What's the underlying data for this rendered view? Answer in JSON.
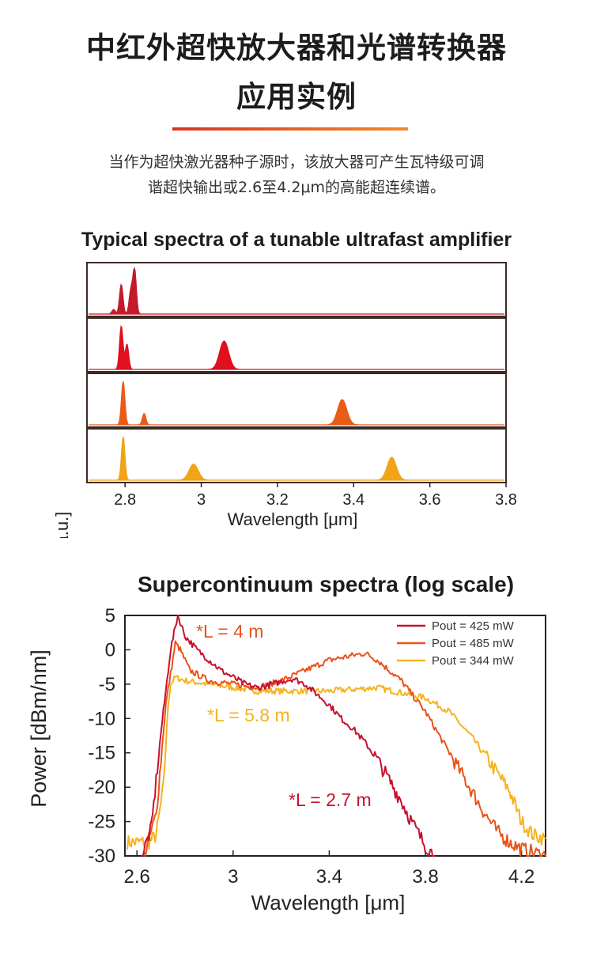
{
  "header": {
    "title_line1": "中红外超快放大器和光谱转换器",
    "title_line2": "应用实例",
    "intro_line1": "当作为超快激光器种子源时，该放大器可产生瓦特级可调",
    "intro_line2": "谐超快输出或2.6至4.2μm的高能超连续谱。"
  },
  "colors": {
    "divider": "#e0502a",
    "red": "#c8102e",
    "orange": "#e8531b",
    "amber": "#f0a316"
  },
  "chart_data": [
    {
      "type": "area",
      "title": "Typical spectra of a tunable ultrafast amplifier",
      "xlabel": "Wavelength [μm]",
      "ylabel": "Relative power [a.u.]",
      "xlim": [
        2.7,
        3.8
      ],
      "xticks": [
        "2.8",
        "3",
        "3.2",
        "3.4",
        "3.6",
        "3.8"
      ],
      "panels": [
        {
          "color": "#c41a2a",
          "peaks": [
            {
              "x": 2.77,
              "y": 0.1
            },
            {
              "x": 2.79,
              "y": 0.65
            },
            {
              "x": 2.815,
              "y": 0.5
            },
            {
              "x": 2.825,
              "y": 0.98
            }
          ]
        },
        {
          "color": "#e0101e",
          "peaks": [
            {
              "x": 2.79,
              "y": 0.95
            },
            {
              "x": 2.805,
              "y": 0.55
            },
            {
              "x": 3.06,
              "y": 0.62
            }
          ]
        },
        {
          "color": "#ea5b17",
          "peaks": [
            {
              "x": 2.795,
              "y": 0.95
            },
            {
              "x": 2.85,
              "y": 0.25
            },
            {
              "x": 3.37,
              "y": 0.55
            }
          ]
        },
        {
          "color": "#f0a416",
          "peaks": [
            {
              "x": 2.795,
              "y": 0.95
            },
            {
              "x": 2.98,
              "y": 0.35
            },
            {
              "x": 3.5,
              "y": 0.5
            }
          ]
        }
      ]
    },
    {
      "type": "line",
      "title": "Supercontinuum spectra (log scale)",
      "xlabel": "Wavelength [μm]",
      "ylabel": "Power [dBm/nm]",
      "xlim": [
        2.55,
        4.3
      ],
      "ylim": [
        -30,
        5
      ],
      "xticks": [
        "2.6",
        "3",
        "3.4",
        "3.8",
        "4.2"
      ],
      "yticks": [
        "5",
        "0",
        "-5",
        "-10",
        "-15",
        "-20",
        "-25",
        "-30"
      ],
      "legend_position": "top-right",
      "series": [
        {
          "name": "Pout = 425 mW",
          "color": "#c8102e",
          "annotation": "*L = 2.7 m",
          "x": [
            2.62,
            2.66,
            2.7,
            2.74,
            2.77,
            2.8,
            2.85,
            2.9,
            2.95,
            3.0,
            3.05,
            3.1,
            3.15,
            3.2,
            3.25,
            3.3,
            3.35,
            3.4,
            3.45,
            3.5,
            3.55,
            3.6,
            3.65,
            3.7,
            3.75,
            3.8,
            3.84
          ],
          "y": [
            -30,
            -26,
            -12,
            0,
            5,
            2,
            0,
            -1.5,
            -3,
            -4,
            -5,
            -5.5,
            -5.2,
            -4.6,
            -4.2,
            -5,
            -6.5,
            -8,
            -10,
            -11.5,
            -13.5,
            -16,
            -19,
            -22,
            -25.5,
            -28.5,
            -30
          ]
        },
        {
          "name": "Pout = 485 mW",
          "color": "#e8531b",
          "annotation": "*L = 4 m",
          "x": [
            2.63,
            2.68,
            2.72,
            2.76,
            2.78,
            2.82,
            2.9,
            3.0,
            3.1,
            3.2,
            3.3,
            3.4,
            3.5,
            3.55,
            3.6,
            3.7,
            3.8,
            3.9,
            4.0,
            4.05,
            4.1,
            4.15,
            4.2,
            4.25,
            4.3
          ],
          "y": [
            -30,
            -24,
            -8,
            1,
            0,
            -3,
            -4.5,
            -5,
            -5.5,
            -4.5,
            -3,
            -1.5,
            -0.8,
            -0.5,
            -1.5,
            -4.5,
            -9,
            -15,
            -21,
            -24,
            -26.5,
            -28,
            -29,
            -29.5,
            -30
          ]
        },
        {
          "name": "Pout = 344 mW",
          "color": "#f5b31d",
          "annotation": "*L = 5.8 m",
          "x": [
            2.56,
            2.65,
            2.68,
            2.71,
            2.73,
            2.74,
            2.76,
            2.8,
            2.9,
            3.0,
            3.1,
            3.2,
            3.4,
            3.6,
            3.8,
            3.9,
            4.0,
            4.05,
            4.1,
            4.15,
            4.2,
            4.25,
            4.3
          ],
          "y": [
            -28,
            -28,
            -27,
            -20,
            -8,
            -5,
            -4,
            -4.5,
            -5,
            -5.5,
            -6,
            -6,
            -6,
            -5.5,
            -7,
            -9,
            -13,
            -15.5,
            -18,
            -20.5,
            -25,
            -27,
            -27.5
          ]
        }
      ]
    }
  ]
}
